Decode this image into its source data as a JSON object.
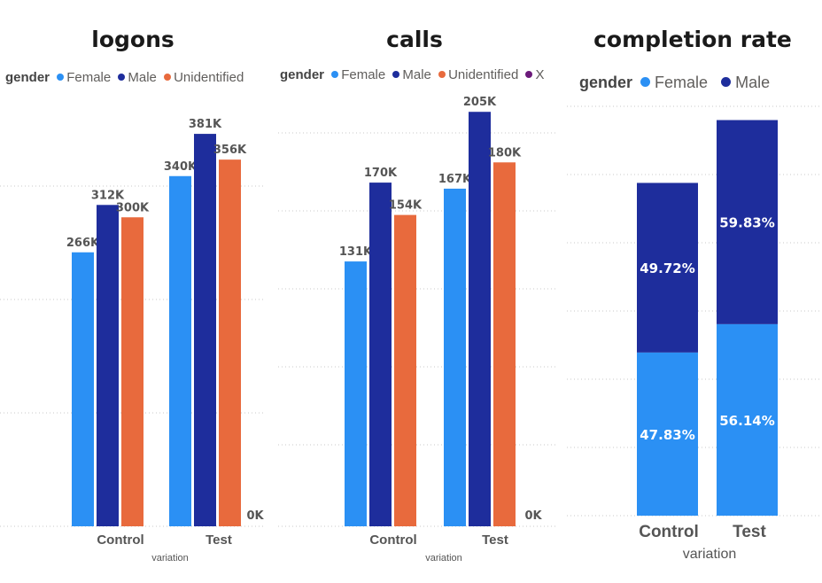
{
  "colors": {
    "Female": "#2b90f4",
    "Male": "#1e2d9c",
    "Unidentified": "#e86a3d",
    "Other": "#6b1a7a"
  },
  "chart_data": [
    {
      "type": "bar",
      "title": "logons",
      "legend_title": "gender",
      "legend_placement": "top-left",
      "categories": [
        "Control",
        "Test"
      ],
      "xlabel": "variation",
      "ylim": [
        0,
        400000
      ],
      "grid": true,
      "series": [
        {
          "name": "Female",
          "values": [
            266000,
            340000
          ],
          "labels": [
            "266K",
            "340K"
          ]
        },
        {
          "name": "Male",
          "values": [
            312000,
            381000
          ],
          "labels": [
            "312K",
            "381K"
          ]
        },
        {
          "name": "Unidentified",
          "values": [
            300000,
            356000
          ],
          "labels": [
            "300K",
            "356K"
          ]
        }
      ],
      "extra_labels": [
        "0K"
      ]
    },
    {
      "type": "bar",
      "title": "calls",
      "legend_title": "gender",
      "legend_placement": "top-left",
      "categories": [
        "Control",
        "Test"
      ],
      "xlabel": "variation",
      "ylim": [
        0,
        220000
      ],
      "grid": true,
      "series": [
        {
          "name": "Female",
          "values": [
            131000,
            167000
          ],
          "labels": [
            "131K",
            "167K"
          ]
        },
        {
          "name": "Male",
          "values": [
            170000,
            205000
          ],
          "labels": [
            "170K",
            "205K"
          ]
        },
        {
          "name": "Unidentified",
          "values": [
            154000,
            180000
          ],
          "labels": [
            "154K",
            "180K"
          ]
        }
      ],
      "legend_extra": "X",
      "extra_labels": [
        "0K"
      ]
    },
    {
      "type": "bar",
      "stacked": true,
      "title": "completion rate",
      "legend_title": "gender",
      "legend_placement": "top-left",
      "categories": [
        "Control",
        "Test"
      ],
      "xlabel": "variation",
      "ylim": [
        0,
        120
      ],
      "grid": true,
      "series": [
        {
          "name": "Female",
          "values": [
            47.83,
            56.14
          ],
          "labels": [
            "47.83%",
            "56.14%"
          ]
        },
        {
          "name": "Male",
          "values": [
            49.72,
            59.83
          ],
          "labels": [
            "49.72%",
            "59.83%"
          ]
        }
      ]
    }
  ]
}
